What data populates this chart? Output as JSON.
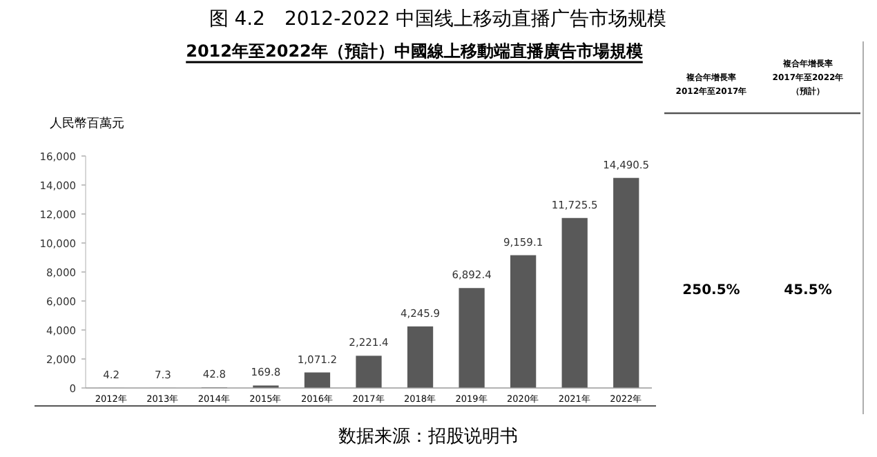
{
  "chart_data": {
    "type": "bar",
    "title": "图 4.2　2012-2022 中国线上移动直播广告市场规模",
    "subtitle": "2012年至2022年（預計）中國線上移動端直播廣告市場規模",
    "ylabel": "人民幣百萬元",
    "categories": [
      "2012年",
      "2013年",
      "2014年",
      "2015年",
      "2016年",
      "2017年",
      "2018年",
      "2019年",
      "2020年",
      "2021年",
      "2022年"
    ],
    "values": [
      4.2,
      7.3,
      42.8,
      169.8,
      1071.2,
      2221.4,
      4245.9,
      6892.4,
      9159.1,
      11725.5,
      14490.5
    ],
    "value_labels": [
      "4.2",
      "7.3",
      "42.8",
      "169.8",
      "1,071.2",
      "2,221.4",
      "4,245.9",
      "6,892.4",
      "9,159.1",
      "11,725.5",
      "14,490.5"
    ],
    "color": "#595959",
    "ylim": [
      0,
      16000
    ],
    "yticks": [
      {
        "value": 0,
        "label": "0"
      },
      {
        "value": 2000,
        "label": "2,000"
      },
      {
        "value": 4000,
        "label": "4,000"
      },
      {
        "value": 6000,
        "label": "6,000"
      },
      {
        "value": 8000,
        "label": "8,000"
      },
      {
        "value": 10000,
        "label": "10,000"
      },
      {
        "value": 12000,
        "label": "12,000"
      },
      {
        "value": 14000,
        "label": "14,000"
      },
      {
        "value": 16000,
        "label": "16,000"
      }
    ],
    "grid": false,
    "annotations": [
      "複合年增長率 2012年至2017年",
      "250.5%",
      "複合年增長率 2017年至2022年（預計）",
      "45.5%",
      "数据来源：招股说明书"
    ]
  }
}
